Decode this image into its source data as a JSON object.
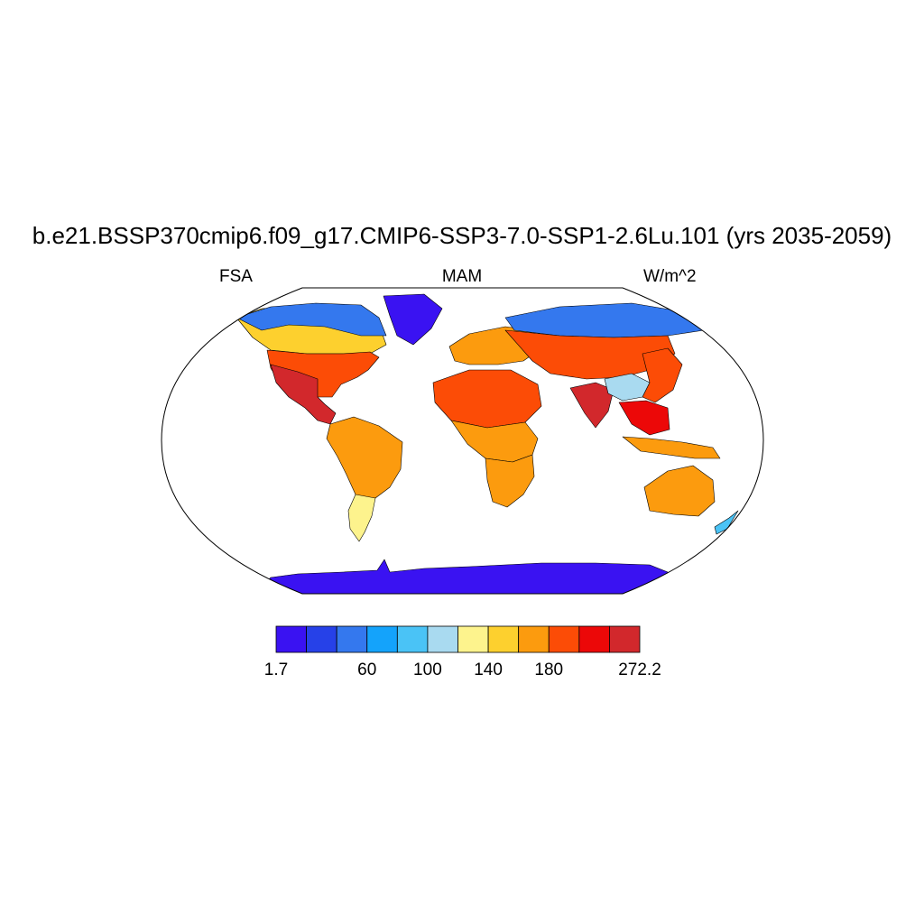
{
  "title": "b.e21.BSSP370cmip6.f09_g17.CMIP6-SSP3-7.0-SSP1-2.6Lu.101 (yrs 2035-2059)",
  "left_label": "FSA",
  "center_label": "MAM",
  "right_label": "W/m^2",
  "colorbar": {
    "colors": [
      "#3a12f2",
      "#2641e8",
      "#3478ee",
      "#14a3fb",
      "#4ac3f6",
      "#a9daf0",
      "#fdf38d",
      "#fdd02e",
      "#fc9b0e",
      "#fc4c06",
      "#ec0808",
      "#d2282c"
    ],
    "labels": [
      {
        "text": "1.7",
        "edge": 0
      },
      {
        "text": "60",
        "edge": 3
      },
      {
        "text": "100",
        "edge": 5
      },
      {
        "text": "140",
        "edge": 7
      },
      {
        "text": "180",
        "edge": 9
      },
      {
        "text": "272.2",
        "edge": 12
      }
    ]
  },
  "regions": [
    {
      "name": "antarctica",
      "color": "#3a12f2"
    },
    {
      "name": "greenland",
      "color": "#3a12f2"
    },
    {
      "name": "canadian-arctic",
      "color": "#3478ee"
    },
    {
      "name": "siberia-north",
      "color": "#3478ee"
    },
    {
      "name": "north-america-boreal",
      "color": "#fdd02e"
    },
    {
      "name": "north-america-mid",
      "color": "#fc4c06"
    },
    {
      "name": "mexico-southwest",
      "color": "#d2282c"
    },
    {
      "name": "south-america",
      "color": "#fc9b0e"
    },
    {
      "name": "patagonia",
      "color": "#fdf38d"
    },
    {
      "name": "europe",
      "color": "#fc9b0e"
    },
    {
      "name": "africa-north",
      "color": "#fc4c06"
    },
    {
      "name": "africa-central",
      "color": "#fc9b0e"
    },
    {
      "name": "africa-south",
      "color": "#fc9b0e"
    },
    {
      "name": "asia-central",
      "color": "#fc4c06"
    },
    {
      "name": "india",
      "color": "#d2282c"
    },
    {
      "name": "tibet",
      "color": "#a9daf0"
    },
    {
      "name": "east-asia",
      "color": "#fc4c06"
    },
    {
      "name": "southeast-asia",
      "color": "#ec0808"
    },
    {
      "name": "indonesia",
      "color": "#fc9b0e"
    },
    {
      "name": "australia",
      "color": "#fc9b0e"
    },
    {
      "name": "new-zealand",
      "color": "#4ac3f6"
    }
  ]
}
